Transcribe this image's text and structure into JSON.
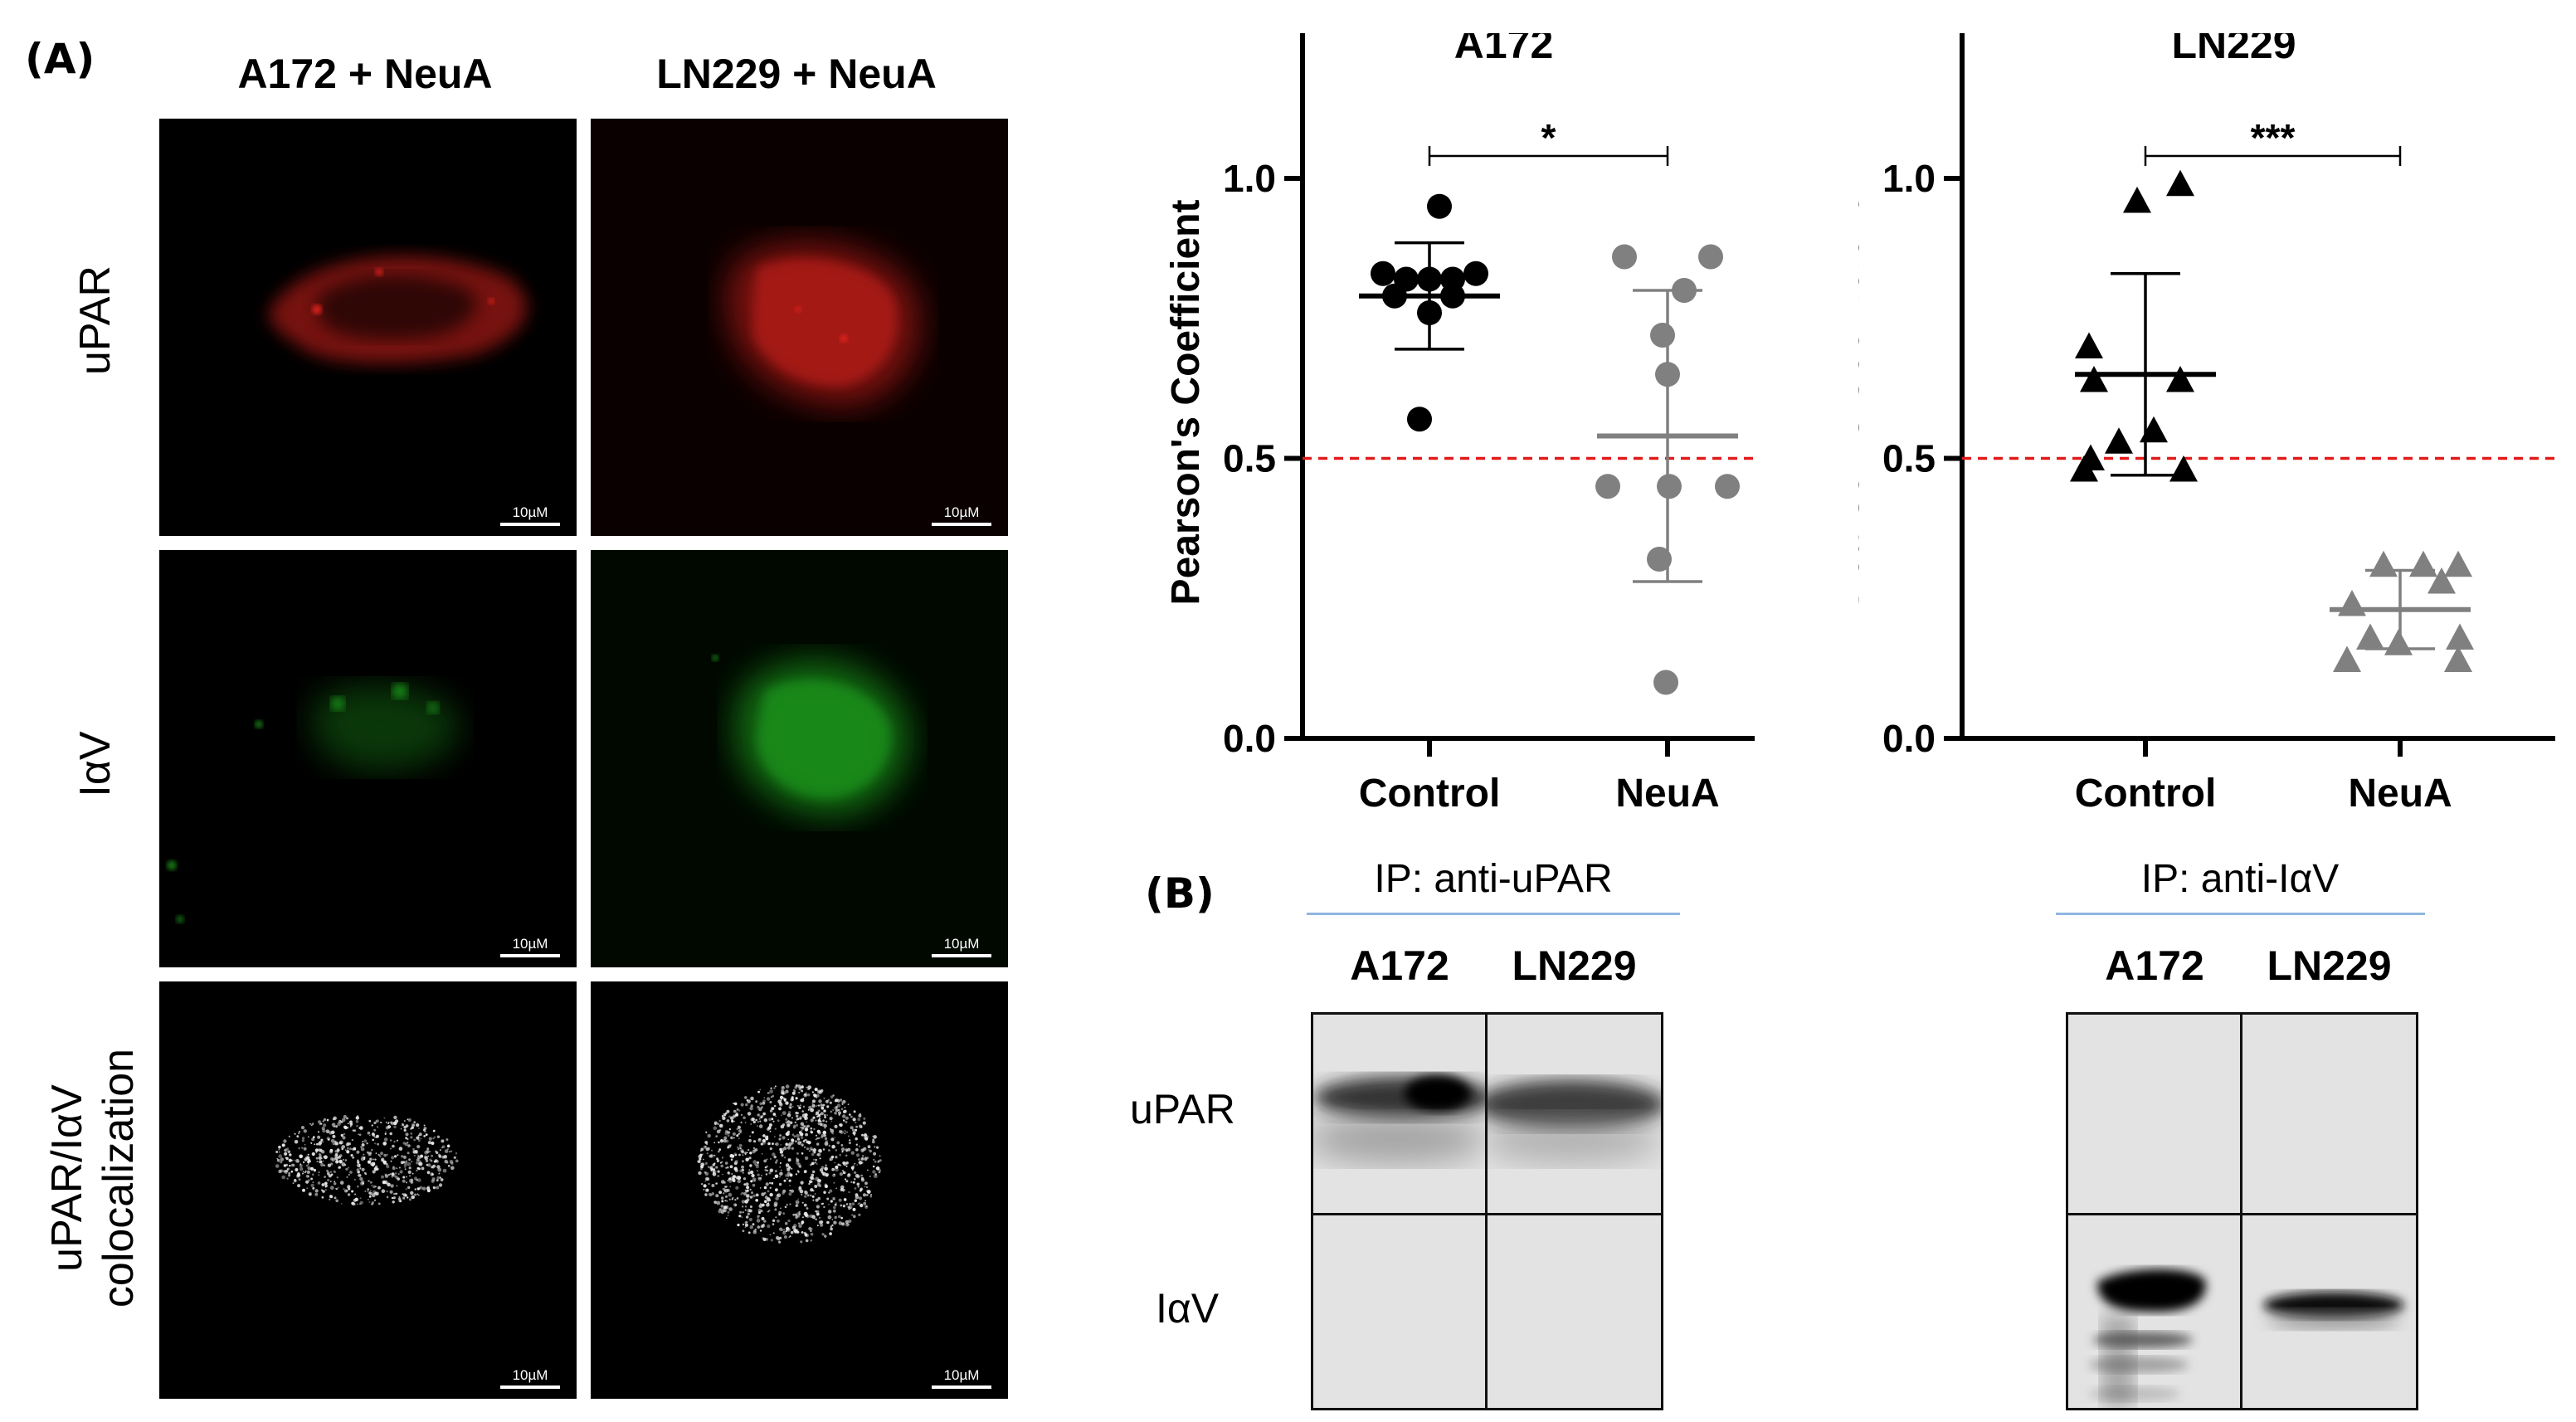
{
  "panel_a": {
    "letter": "(A)",
    "columns": [
      "A172 + NeuA",
      "LN229 + NeuA"
    ],
    "rows": [
      "uPAR",
      "IαV",
      "uPAR/IαV",
      "colocalization"
    ],
    "scale_label": "10µM",
    "channel_colors": {
      "upar": "#e01818",
      "iav": "#20c020",
      "coloc": "#ffffff"
    }
  },
  "chart_data": [
    {
      "type": "scatter",
      "title": "A172",
      "xlabel": "",
      "ylabel": "Pearson's Coefficient",
      "categories": [
        "Control",
        "NeuA"
      ],
      "ylim": [
        0,
        1.2
      ],
      "yticks": [
        "0.0",
        "0.5",
        "1.0"
      ],
      "threshold": 0.5,
      "marker": "circle",
      "series_colors": [
        "#000000",
        "#808080"
      ],
      "points": [
        [
          0.95,
          0.83,
          0.83,
          0.82,
          0.82,
          0.82,
          0.79,
          0.79,
          0.76,
          0.57
        ],
        [
          0.86,
          0.86,
          0.8,
          0.72,
          0.65,
          0.45,
          0.45,
          0.45,
          0.32,
          0.1
        ]
      ],
      "mean": [
        0.79,
        0.54
      ],
      "sd": [
        0.095,
        0.26
      ],
      "significance": "*"
    },
    {
      "type": "scatter",
      "title": "LN229",
      "xlabel": "",
      "ylabel": "Pearson's Coefficient",
      "categories": [
        "Control",
        "NeuA"
      ],
      "ylim": [
        0,
        1.2
      ],
      "yticks": [
        "0.0",
        "0.5",
        "1.0"
      ],
      "threshold": 0.5,
      "marker": "triangle",
      "series_colors": [
        "#000000",
        "#808080"
      ],
      "points": [
        [
          0.99,
          0.96,
          0.7,
          0.64,
          0.64,
          0.55,
          0.53,
          0.5,
          0.48,
          0.48
        ],
        [
          0.31,
          0.31,
          0.31,
          0.28,
          0.24,
          0.18,
          0.18,
          0.17,
          0.14,
          0.14
        ]
      ],
      "mean": [
        0.65,
        0.23
      ],
      "sd": [
        0.18,
        0.07
      ],
      "significance": "***"
    }
  ],
  "panel_b": {
    "letter": "(B)",
    "blots": [
      {
        "ip_title": "IP: anti-uPAR",
        "lanes": [
          "A172",
          "LN229"
        ],
        "row_labels": [
          "uPAR",
          "IαV"
        ]
      },
      {
        "ip_title": "IP: anti-IαV",
        "lanes": [
          "A172",
          "LN229"
        ]
      }
    ]
  }
}
